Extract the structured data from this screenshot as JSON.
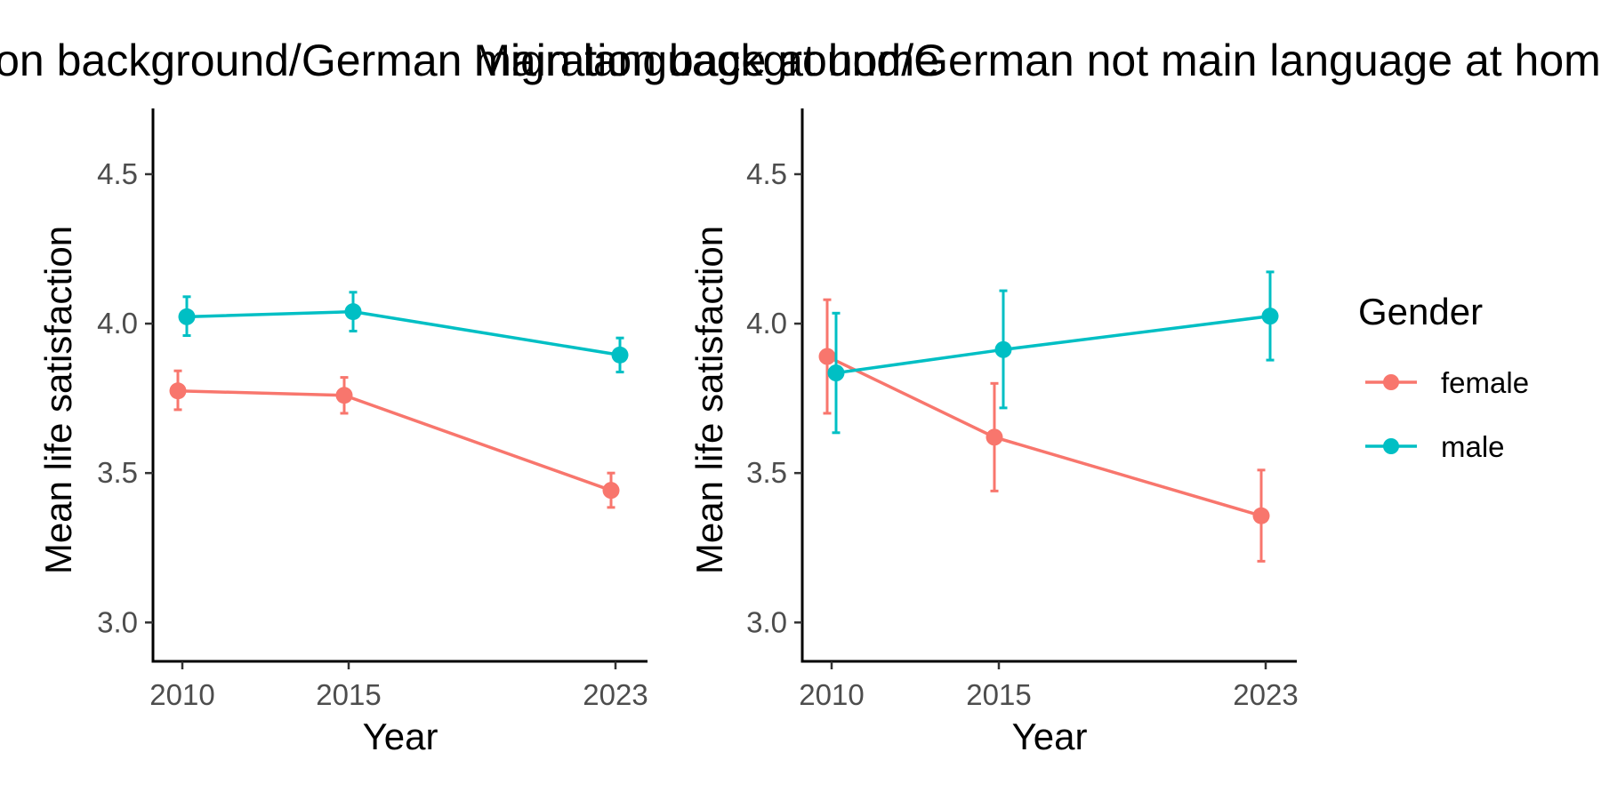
{
  "chart_data": [
    {
      "type": "line",
      "title": "Migration background/German main language at home",
      "xlabel": "Year",
      "ylabel": "Mean life satisfaction",
      "x": [
        2010,
        2015,
        2023
      ],
      "x_tick_labels": [
        "2010",
        "2015",
        "2023"
      ],
      "ylim": [
        2.87,
        4.72
      ],
      "y_ticks": [
        3.0,
        3.5,
        4.0,
        4.5
      ],
      "y_tick_labels": [
        "3.0",
        "3.5",
        "4.0",
        "4.5"
      ],
      "grid": false,
      "series": [
        {
          "name": "female",
          "color": "#F8766D",
          "values": [
            3.775,
            3.76,
            3.442
          ],
          "error_low": [
            3.712,
            3.7,
            3.385
          ],
          "error_high": [
            3.842,
            3.82,
            3.5
          ]
        },
        {
          "name": "male",
          "color": "#00BFC4",
          "values": [
            4.023,
            4.04,
            3.895
          ],
          "error_low": [
            3.96,
            3.975,
            3.838
          ],
          "error_high": [
            4.09,
            4.105,
            3.952
          ]
        }
      ]
    },
    {
      "type": "line",
      "title": "Migration background/German not main language at home",
      "xlabel": "Year",
      "ylabel": "Mean life satisfaction",
      "x": [
        2010,
        2015,
        2023
      ],
      "x_tick_labels": [
        "2010",
        "2015",
        "2023"
      ],
      "ylim": [
        2.87,
        4.72
      ],
      "y_ticks": [
        3.0,
        3.5,
        4.0,
        4.5
      ],
      "y_tick_labels": [
        "3.0",
        "3.5",
        "4.0",
        "4.5"
      ],
      "grid": false,
      "series": [
        {
          "name": "female",
          "color": "#F8766D",
          "values": [
            3.89,
            3.62,
            3.357
          ],
          "error_low": [
            3.7,
            3.44,
            3.205
          ],
          "error_high": [
            4.08,
            3.8,
            3.51
          ]
        },
        {
          "name": "male",
          "color": "#00BFC4",
          "values": [
            3.835,
            3.913,
            4.025
          ],
          "error_low": [
            3.635,
            3.718,
            3.878
          ],
          "error_high": [
            4.035,
            4.11,
            4.173
          ]
        }
      ]
    }
  ],
  "legend": {
    "title": "Gender",
    "position": "right",
    "items": [
      {
        "label": "female",
        "color": "#F8766D"
      },
      {
        "label": "male",
        "color": "#00BFC4"
      }
    ]
  }
}
